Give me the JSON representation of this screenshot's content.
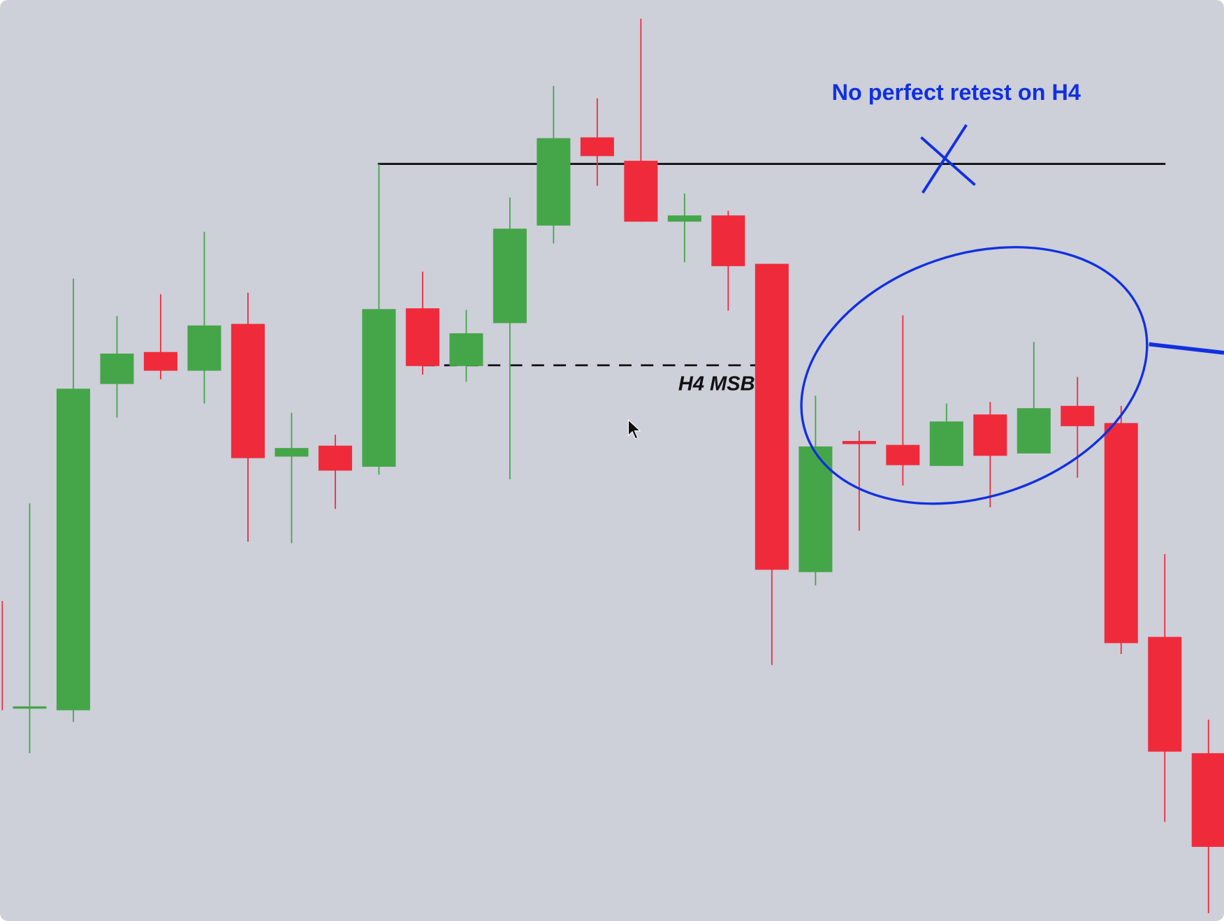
{
  "chart_data": {
    "type": "candlestick",
    "open": [
      272,
      270,
      688,
      729,
      705,
      765,
      595,
      609,
      582,
      785,
      711,
      766,
      891,
      1004,
      974,
      896,
      904,
      842,
      447,
      615,
      610,
      583,
      649,
      599,
      660,
      638,
      364,
      215
    ],
    "high": [
      535,
      823,
      775,
      803,
      883,
      805,
      651,
      623,
      970,
      832,
      783,
      927,
      1070,
      1054,
      1156,
      932,
      910,
      842,
      673,
      628,
      776,
      663,
      665,
      742,
      697,
      660,
      470,
      258
    ],
    "low": [
      215,
      255,
      645,
      694,
      663,
      486,
      484,
      528,
      572,
      700,
      691,
      566,
      868,
      942,
      896,
      844,
      782,
      328,
      430,
      500,
      558,
      583,
      530,
      599,
      568,
      342,
      127,
      10
    ],
    "close": [
      275,
      682,
      727,
      705,
      763,
      593,
      606,
      577,
      784,
      711,
      753,
      887,
      1003,
      980,
      896,
      904,
      839,
      450,
      608,
      611,
      584,
      640,
      596,
      657,
      634,
      356,
      217,
      95
    ],
    "up_color": "#45a649",
    "down_color": "#ef2b3b",
    "ylim": [
      0,
      1180
    ],
    "levels": [
      {
        "value": 970,
        "style": "solid"
      },
      {
        "value": 712,
        "style": "dashed"
      }
    ],
    "annotations": [
      "No perfect retest on H4",
      "H4 MSB"
    ]
  }
}
